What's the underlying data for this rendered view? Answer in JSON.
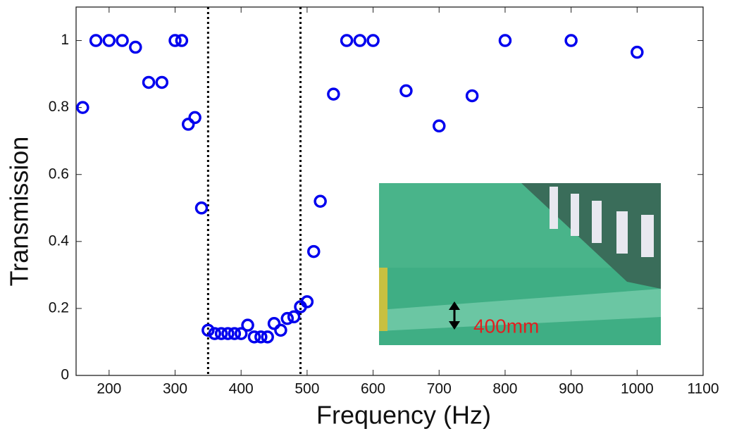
{
  "chart_data": {
    "type": "scatter",
    "x_label": "Frequency (Hz)",
    "y_label": "Transmission",
    "x": [
      160,
      180,
      200,
      220,
      240,
      260,
      280,
      300,
      310,
      320,
      330,
      340,
      350,
      360,
      370,
      380,
      390,
      400,
      410,
      420,
      430,
      440,
      450,
      460,
      470,
      480,
      490,
      500,
      510,
      520,
      540,
      560,
      580,
      600,
      650,
      700,
      750,
      800,
      900,
      1000
    ],
    "series": [
      {
        "color": "#0000ee",
        "values": [
          0.8,
          1,
          1,
          1,
          0.98,
          0.875,
          0.875,
          1,
          1,
          0.75,
          0.77,
          0.5,
          0.135,
          0.125,
          0.125,
          0.125,
          0.125,
          0.125,
          0.15,
          0.115,
          0.115,
          0.115,
          0.155,
          0.135,
          0.17,
          0.175,
          0.205,
          0.22,
          0.37,
          0.52,
          0.84,
          1,
          1,
          1,
          0.85,
          0.745,
          0.835,
          1,
          1,
          0.965
        ]
      }
    ],
    "vlines": [
      350,
      490
    ],
    "xlim": [
      150,
      1100
    ],
    "ylim": [
      0,
      1.1
    ],
    "xticks": [
      200,
      300,
      400,
      500,
      600,
      700,
      800,
      900,
      1000,
      1100
    ],
    "yticks": [
      0,
      0.2,
      0.4,
      0.6,
      0.8,
      1
    ],
    "inset_label": "400mm"
  }
}
